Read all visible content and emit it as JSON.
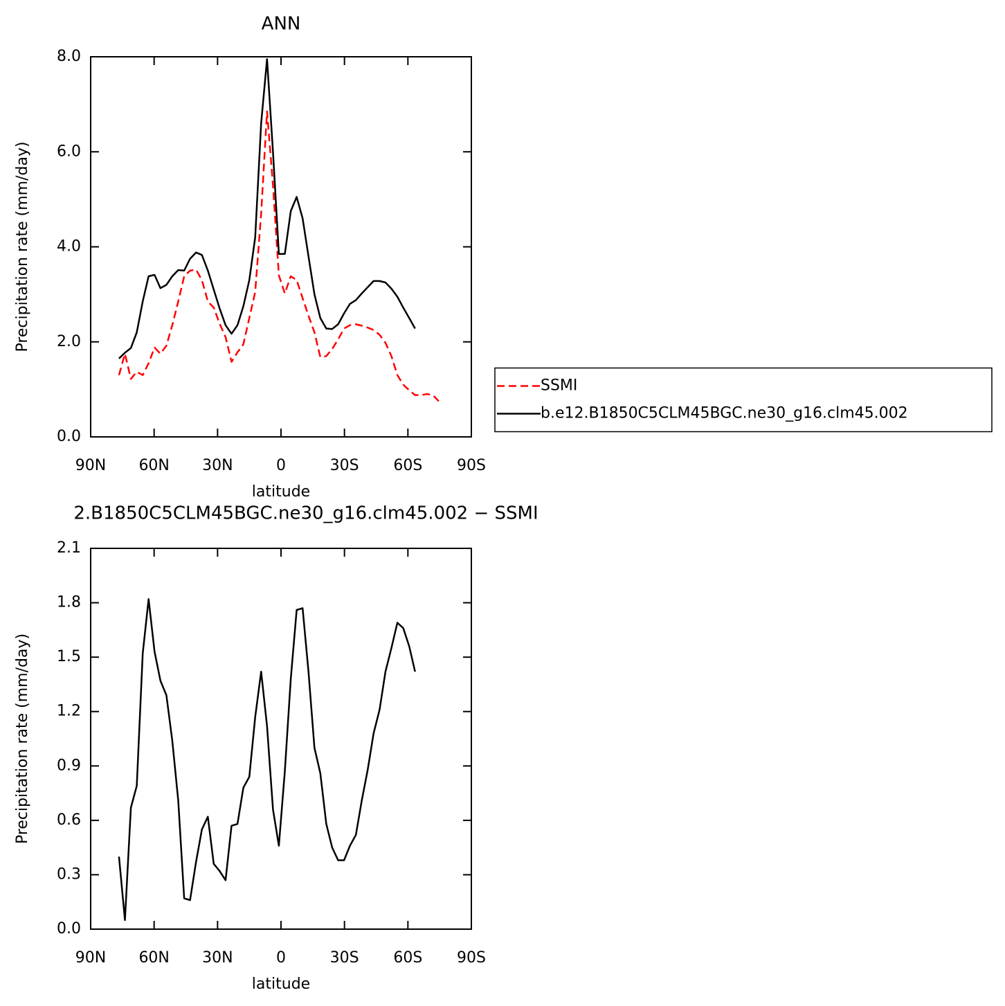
{
  "chart_data": [
    {
      "type": "line",
      "title": "ANN",
      "x_label": "latitude",
      "y_label": "Precipitation rate (mm/day)",
      "x": [
        76.6,
        73.8,
        71.0,
        68.2,
        65.4,
        62.6,
        59.8,
        57.0,
        54.2,
        51.4,
        48.6,
        45.8,
        43.0,
        40.2,
        37.4,
        34.6,
        31.8,
        29.0,
        26.2,
        23.4,
        20.6,
        17.8,
        15.0,
        12.2,
        9.4,
        6.6,
        3.8,
        1.0,
        -1.8,
        -4.6,
        -7.4,
        -10.2,
        -13.0,
        -15.8,
        -18.6,
        -21.4,
        -24.2,
        -27.0,
        -29.8,
        -32.6,
        -35.4,
        -38.2,
        -41.0,
        -43.8,
        -46.6,
        -49.4,
        -52.2,
        -55.0,
        -57.8,
        -60.6,
        -63.4,
        -66.2,
        -69.0,
        -71.8,
        -74.6
      ],
      "xlim": [
        90,
        -90
      ],
      "xticks": [
        {
          "value": 90,
          "label": "90N"
        },
        {
          "value": 60,
          "label": "60N"
        },
        {
          "value": 30,
          "label": "30N"
        },
        0,
        {
          "value": -30,
          "label": "30S"
        },
        {
          "value": -60,
          "label": "60S"
        },
        {
          "value": -90,
          "label": "90S"
        }
      ],
      "ylim": [
        0,
        8
      ],
      "yticks": [
        {
          "value": 0,
          "label": "0.0"
        },
        {
          "value": 2,
          "label": "2.0"
        },
        {
          "value": 4,
          "label": "4.0"
        },
        {
          "value": 6,
          "label": "6.0"
        },
        {
          "value": 8,
          "label": "8.0"
        }
      ],
      "legend": "right",
      "series": [
        {
          "name": "SSMI",
          "color": "#ff0000",
          "dash": "dashed",
          "values": [
            1.3,
            1.75,
            1.22,
            1.37,
            1.3,
            1.55,
            1.88,
            1.75,
            1.92,
            2.35,
            2.85,
            3.38,
            3.5,
            3.52,
            3.3,
            2.85,
            2.72,
            2.38,
            2.1,
            1.58,
            1.78,
            1.95,
            2.5,
            3.05,
            4.7,
            6.85,
            5.3,
            3.4,
            3.02,
            3.38,
            3.3,
            2.92,
            2.55,
            2.2,
            1.68,
            1.7,
            1.85,
            2.05,
            2.28,
            2.35,
            2.37,
            2.34,
            2.3,
            2.25,
            2.15,
            1.98,
            1.7,
            1.3,
            1.1,
            0.98,
            0.88,
            0.88,
            0.9,
            0.88,
            0.75
          ]
        },
        {
          "name": "b.e12.B1850C5CLM45BGC.ne30_g16.clm45.002",
          "color": "#000000",
          "values": [
            1.65,
            1.77,
            1.87,
            2.2,
            2.85,
            3.38,
            3.41,
            3.13,
            3.2,
            3.38,
            3.51,
            3.5,
            3.75,
            3.88,
            3.83,
            3.5,
            3.1,
            2.7,
            2.35,
            2.17,
            2.35,
            2.75,
            3.3,
            4.2,
            6.6,
            7.95,
            6.0,
            3.85,
            3.85,
            4.75,
            5.05,
            4.6,
            3.8,
            3.0,
            2.5,
            2.28,
            2.27,
            2.37,
            2.6,
            2.8,
            2.88,
            3.02,
            3.15,
            3.28,
            3.28,
            3.25,
            3.12,
            2.95,
            2.72,
            2.5,
            2.28,
            null,
            null,
            null,
            null
          ]
        }
      ]
    },
    {
      "type": "line",
      "title": "2.B1850C5CLM45BGC.ne30_g16.clm45.002 − SSMI",
      "x_label": "latitude",
      "y_label": "Precipitation rate (mm/day)",
      "x": [
        76.6,
        73.8,
        71.0,
        68.2,
        65.4,
        62.6,
        59.8,
        57.0,
        54.2,
        51.4,
        48.6,
        45.8,
        43.0,
        40.2,
        37.4,
        34.6,
        31.8,
        29.0,
        26.2,
        23.4,
        20.6,
        17.8,
        15.0,
        12.2,
        9.4,
        6.6,
        3.8,
        1.0,
        -1.8,
        -4.6,
        -7.4,
        -10.2,
        -13.0,
        -15.8,
        -18.6,
        -21.4,
        -24.2,
        -27.0,
        -29.8,
        -32.6,
        -35.4,
        -38.2,
        -41.0,
        -43.8,
        -46.6,
        -49.4,
        -52.2,
        -55.0,
        -57.8,
        -60.6,
        -63.4
      ],
      "xlim": [
        90,
        -90
      ],
      "xticks": [
        {
          "value": 90,
          "label": "90N"
        },
        {
          "value": 60,
          "label": "60N"
        },
        {
          "value": 30,
          "label": "30N"
        },
        0,
        {
          "value": -30,
          "label": "30S"
        },
        {
          "value": -60,
          "label": "60S"
        },
        {
          "value": -90,
          "label": "90S"
        }
      ],
      "ylim": [
        0,
        2.1
      ],
      "yticks": [
        {
          "value": 0,
          "label": "0.0"
        },
        0.3,
        0.6,
        0.9,
        1.2,
        1.5,
        1.8,
        2.1
      ],
      "series": [
        {
          "color": "#000000",
          "values": [
            0.4,
            0.05,
            0.67,
            0.79,
            1.52,
            1.82,
            1.53,
            1.37,
            1.29,
            1.04,
            0.71,
            0.17,
            0.16,
            0.37,
            0.55,
            0.62,
            0.36,
            0.32,
            0.27,
            0.57,
            0.58,
            0.78,
            0.84,
            1.17,
            1.42,
            1.12,
            0.66,
            0.46,
            0.87,
            1.38,
            1.76,
            1.77,
            1.42,
            1.0,
            0.86,
            0.58,
            0.45,
            0.38,
            0.38,
            0.46,
            0.52,
            0.71,
            0.88,
            1.08,
            1.21,
            1.42,
            1.55,
            1.69,
            1.66,
            1.56,
            1.42
          ]
        }
      ]
    }
  ]
}
